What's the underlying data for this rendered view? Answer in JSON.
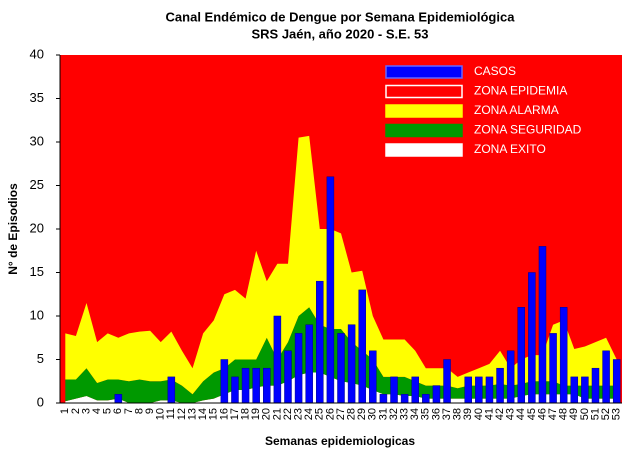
{
  "chart_data": {
    "type": "endemic",
    "title": "Canal Endémico de Dengue por Semana Epidemiológica",
    "subtitle": "SRS Jaén, año 2020 - S.E. 53",
    "x_label": "Semanas epidemiologicas",
    "y_label": "N° de Episodios",
    "categories": [
      "1",
      "2",
      "3",
      "4",
      "5",
      "6",
      "7",
      "8",
      "9",
      "10",
      "11",
      "12",
      "13",
      "14",
      "15",
      "16",
      "17",
      "18",
      "19",
      "20",
      "21",
      "22",
      "23",
      "24",
      "25",
      "26",
      "27",
      "28",
      "29",
      "30",
      "31",
      "32",
      "33",
      "34",
      "35",
      "36",
      "37",
      "38",
      "39",
      "40",
      "41",
      "42",
      "43",
      "44",
      "45",
      "46",
      "47",
      "48",
      "49",
      "50",
      "51",
      "52",
      "53"
    ],
    "ylim": [
      0,
      40
    ],
    "yticks": [
      0,
      5,
      10,
      15,
      20,
      25,
      30,
      35,
      40
    ],
    "background_zone": {
      "name": "ZONA EPIDEMIA",
      "color": "#ff0000"
    },
    "series": [
      {
        "name": "CASOS",
        "kind": "bar",
        "color": "#0000ff",
        "values": [
          0,
          0,
          0,
          0,
          0,
          1,
          0,
          0,
          0,
          0,
          3,
          0,
          0,
          0,
          0,
          5,
          3,
          4,
          4,
          4,
          10,
          6,
          8,
          9,
          14,
          26,
          8,
          9,
          13,
          6,
          1,
          3,
          1,
          3,
          1,
          2,
          5,
          0,
          3,
          3,
          3,
          4,
          6,
          11,
          15,
          18,
          8,
          11,
          3,
          3,
          4,
          6,
          5
        ]
      },
      {
        "name": "ZONA ALARMA",
        "kind": "area",
        "color": "#ffff00",
        "values": [
          5.3,
          5.0,
          7.5,
          4.7,
          5.3,
          4.8,
          5.5,
          5.5,
          5.8,
          4.5,
          5.5,
          4.0,
          3.0,
          5.5,
          6.0,
          8.5,
          8.0,
          7.0,
          12.5,
          6.5,
          11.0,
          9.0,
          20.5,
          19.7,
          11.0,
          11.5,
          11.0,
          8.0,
          9.2,
          5.0,
          4.3,
          4.3,
          4.3,
          3.5,
          2.0,
          2.0,
          2.0,
          1.3,
          1.5,
          2.0,
          2.5,
          3.8,
          2.0,
          2.8,
          3.0,
          3.0,
          6.5,
          7.5,
          4.2,
          4.5,
          5.0,
          5.5,
          3.0
        ]
      },
      {
        "name": "ZONA SEGURIDAD",
        "kind": "area",
        "color": "#009900",
        "values": [
          2.5,
          2.2,
          3.2,
          2.0,
          2.4,
          2.2,
          2.5,
          2.7,
          2.5,
          2.2,
          2.4,
          2.0,
          1.0,
          2.2,
          3.0,
          3.0,
          3.5,
          3.5,
          3.2,
          5.5,
          3.0,
          4.5,
          6.8,
          7.5,
          5.5,
          5.5,
          6.0,
          4.7,
          4.0,
          3.5,
          2.0,
          2.0,
          2.2,
          1.7,
          1.5,
          1.5,
          1.5,
          1.2,
          1.5,
          1.5,
          1.5,
          1.7,
          1.5,
          1.4,
          1.5,
          1.5,
          1.5,
          1.0,
          1.0,
          1.5,
          1.5,
          1.5,
          1.5
        ]
      },
      {
        "name": "ZONA EXITO",
        "kind": "area",
        "color": "#ffffff",
        "values": [
          0.2,
          0.5,
          0.8,
          0.3,
          0.3,
          0.5,
          0,
          0,
          0,
          0.3,
          0.3,
          0,
          0,
          0.3,
          0.5,
          1,
          1.5,
          1.5,
          1.8,
          2,
          2,
          2.5,
          3.2,
          3.5,
          3.5,
          3,
          2.5,
          2.3,
          2,
          1.5,
          1,
          1,
          0.8,
          0.8,
          0.5,
          0.5,
          0.5,
          0.5,
          0.5,
          0.5,
          0.5,
          0.5,
          0.5,
          0.8,
          1,
          1,
          1,
          1,
          1,
          0.5,
          0.5,
          0.5,
          0.5
        ]
      }
    ]
  }
}
